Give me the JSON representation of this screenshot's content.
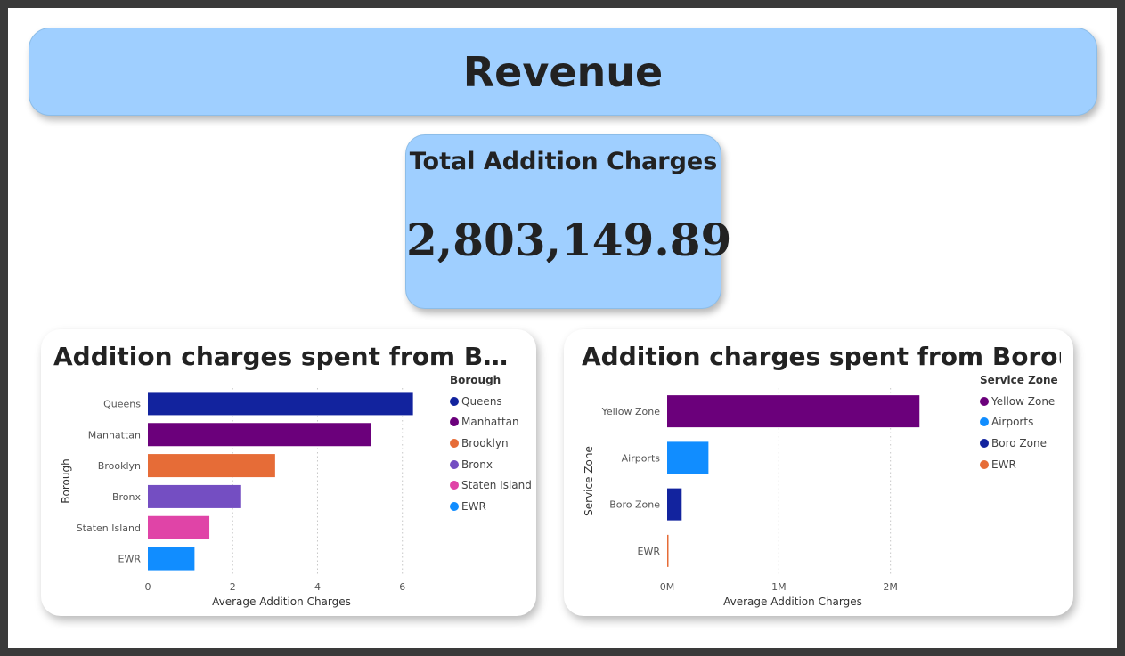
{
  "page": {
    "title": "Revenue"
  },
  "kpi": {
    "title": "Total Addition Charges",
    "value": "2,803,149.89"
  },
  "chart_data": [
    {
      "type": "bar",
      "orientation": "horizontal",
      "title": "Addition charges spent from Borou...",
      "xlabel": "Average Addition Charges",
      "ylabel": "Borough",
      "categories": [
        "Queens",
        "Manhattan",
        "Brooklyn",
        "Bronx",
        "Staten Island",
        "EWR"
      ],
      "values": [
        6.25,
        5.25,
        3.0,
        2.2,
        1.45,
        1.1
      ],
      "colors": [
        "#12239e",
        "#6b007b",
        "#e66c37",
        "#744ec2",
        "#e044a7",
        "#118dff"
      ],
      "xlim": [
        0,
        6.3
      ],
      "xticks": [
        0,
        2,
        4,
        6
      ],
      "xtick_labels": [
        "0",
        "2",
        "4",
        "6"
      ],
      "grid": true,
      "legend": {
        "title": "Borough",
        "position": "right",
        "items": [
          "Queens",
          "Manhattan",
          "Brooklyn",
          "Bronx",
          "Staten Island",
          "EWR"
        ]
      }
    },
    {
      "type": "bar",
      "orientation": "horizontal",
      "title": "Addition charges spent from Borough",
      "xlabel": "Average Addition Charges",
      "ylabel": "Service Zone",
      "categories": [
        "Yellow Zone",
        "Airports",
        "Boro Zone",
        "EWR"
      ],
      "values": [
        2260000,
        370000,
        130000,
        5000
      ],
      "colors": [
        "#6b007b",
        "#118dff",
        "#12239e",
        "#e66c37"
      ],
      "xlim": [
        0,
        2250000
      ],
      "xticks": [
        0,
        1000000,
        2000000
      ],
      "xtick_labels": [
        "0M",
        "1M",
        "2M"
      ],
      "grid": true,
      "legend": {
        "title": "Service Zone",
        "position": "right",
        "items": [
          "Yellow Zone",
          "Airports",
          "Boro Zone",
          "EWR"
        ]
      }
    }
  ]
}
